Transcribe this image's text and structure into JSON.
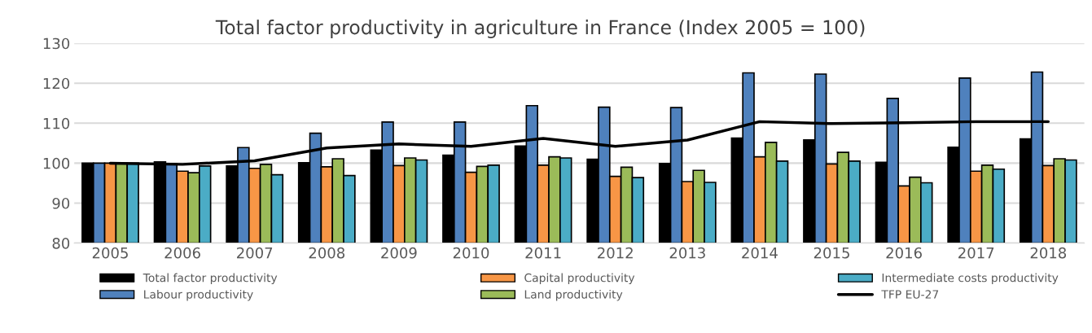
{
  "chart_data": {
    "type": "bar",
    "title": "Total factor productivity in agriculture in France (Index 2005 = 100)",
    "categories": [
      "2005",
      "2006",
      "2007",
      "2008",
      "2009",
      "2010",
      "2011",
      "2012",
      "2013",
      "2014",
      "2015",
      "2016",
      "2017",
      "2018"
    ],
    "series": [
      {
        "name": "Total factor productivity",
        "color": "#000000",
        "values": [
          100,
          100.3,
          99.3,
          100.1,
          103.3,
          102,
          104.3,
          101,
          99.9,
          106.3,
          105.8,
          100.2,
          104,
          106.1
        ]
      },
      {
        "name": "Labour productivity",
        "color": "#4f81bd",
        "values": [
          100,
          99.8,
          103.9,
          107.5,
          110.3,
          110.3,
          114.4,
          114,
          113.9,
          122.6,
          122.3,
          116.2,
          121.3,
          122.8
        ]
      },
      {
        "name": "Capital productivity",
        "color": "#f79646",
        "values": [
          100,
          98,
          98.7,
          99.1,
          99.4,
          97.7,
          99.5,
          96.7,
          95.4,
          101.6,
          99.8,
          94.3,
          98,
          99.4
        ]
      },
      {
        "name": "Land productivity",
        "color": "#9bbb59",
        "values": [
          100,
          97.6,
          99.7,
          101.1,
          101.3,
          99.2,
          101.6,
          99,
          98.2,
          105.2,
          102.7,
          96.5,
          99.5,
          101.1
        ]
      },
      {
        "name": "Intermediate costs productivity",
        "color": "#4bacc6",
        "values": [
          100,
          99.3,
          97.1,
          96.9,
          100.8,
          99.5,
          101.3,
          96.4,
          95.2,
          100.5,
          100.5,
          95.1,
          98.5,
          100.8
        ]
      },
      {
        "name": "TFP EU-27",
        "type": "line",
        "color": "#000000",
        "values": [
          100,
          99.7,
          100.6,
          103.8,
          104.8,
          104.2,
          106.2,
          104.2,
          105.8,
          110.4,
          109.9,
          110.1,
          110.4,
          110.4
        ]
      }
    ],
    "ylim": [
      80,
      130
    ],
    "yticks": [
      80,
      90,
      100,
      110,
      120,
      130
    ],
    "grid": "y",
    "legend": "bottom"
  }
}
